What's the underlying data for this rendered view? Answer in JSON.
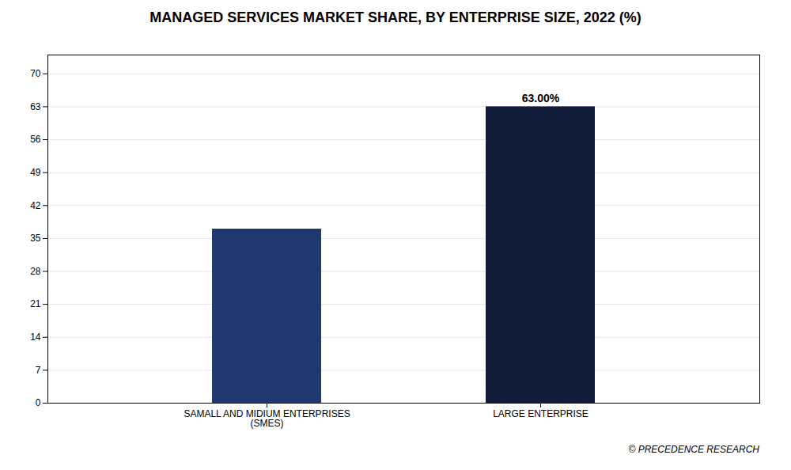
{
  "chart_data": {
    "type": "bar",
    "title": "MANAGED SERVICES MARKET SHARE, BY ENTERPRISE SIZE, 2022 (%)",
    "categories": [
      "SAMALL AND MIDIUM ENTERPRISES\n(SMES)",
      "LARGE ENTERPRISE"
    ],
    "values": [
      37.0,
      63.0
    ],
    "value_labels": [
      null,
      "63.00%"
    ],
    "colors": [
      "#1e3a6e",
      "#111c3a"
    ],
    "ylim": [
      0,
      74
    ],
    "yticks": [
      0,
      7,
      14,
      21,
      28,
      35,
      42,
      49,
      56,
      63,
      70
    ],
    "grid": true,
    "caption": "© PRECEDENCE RESEARCH"
  }
}
